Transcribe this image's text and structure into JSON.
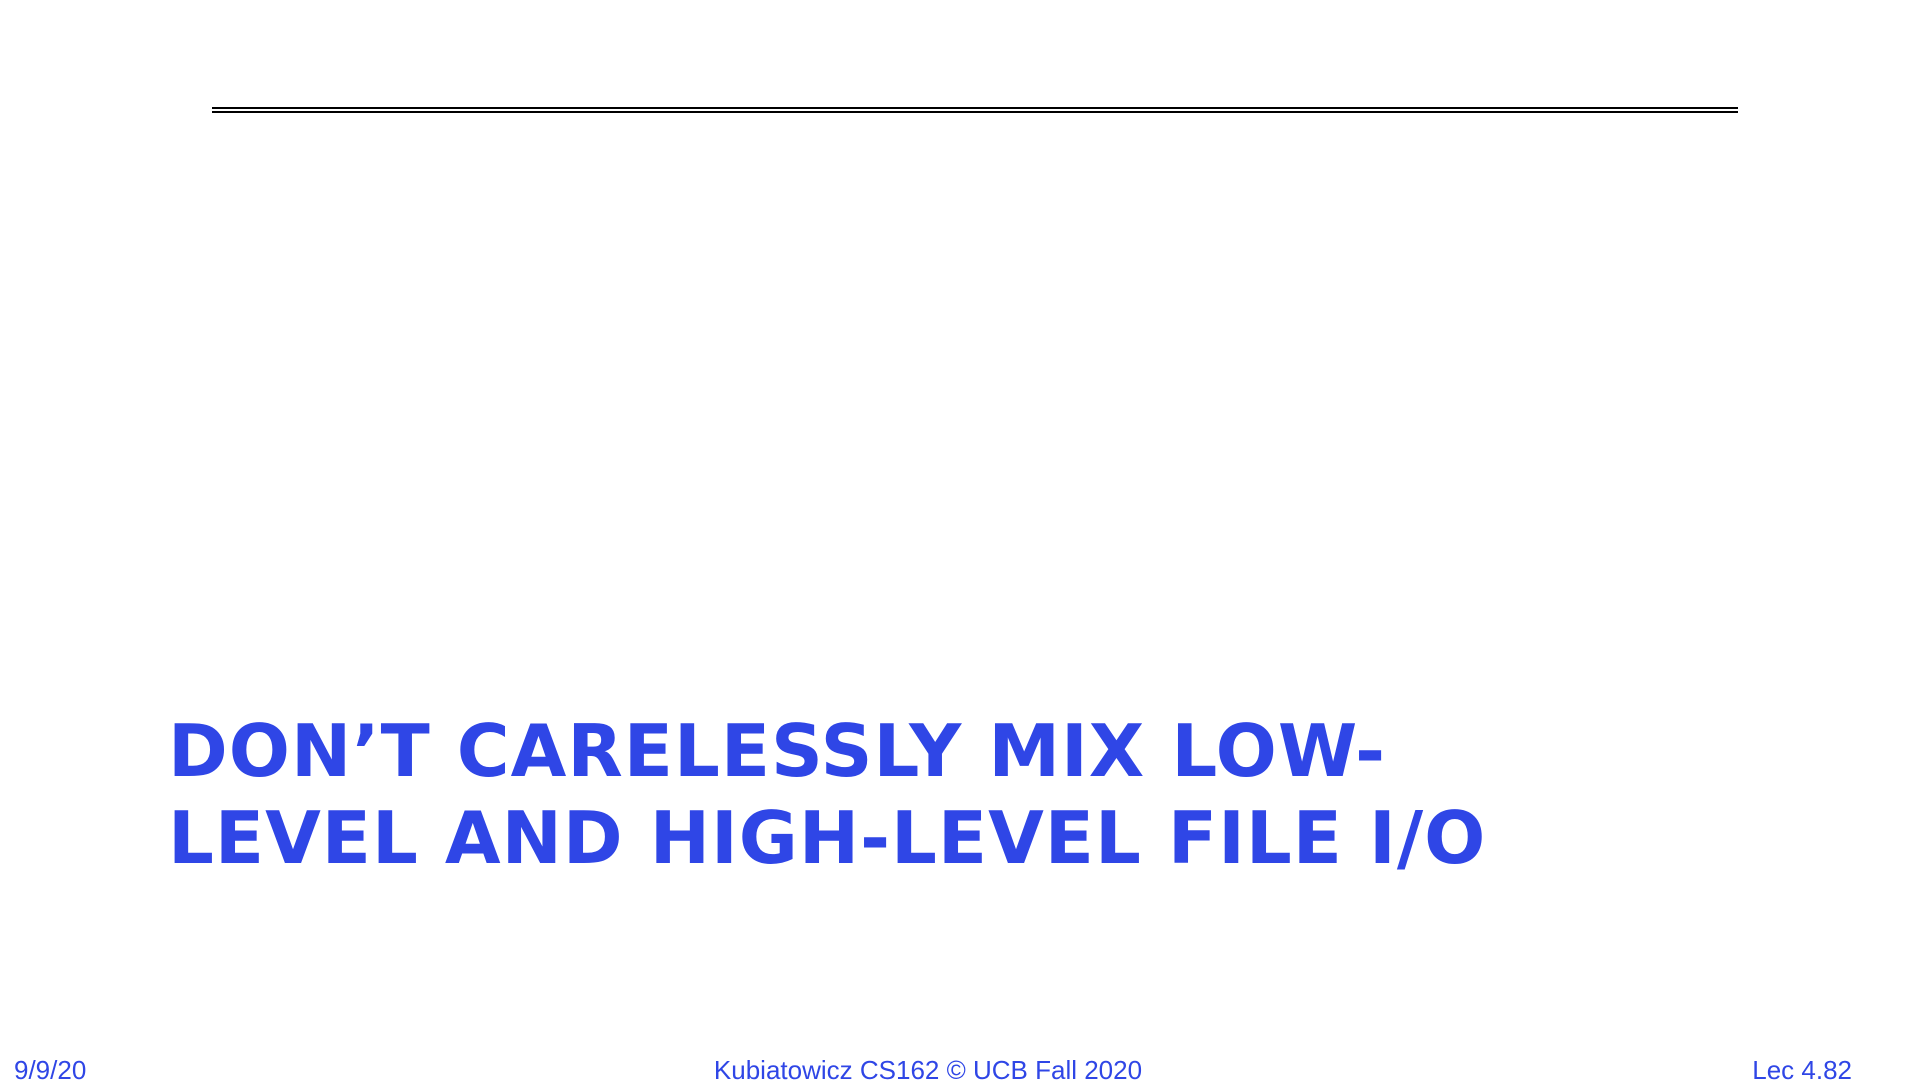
{
  "slide": {
    "title_lines": [
      "DON’T CARELESSLY MIX LOW-",
      "LEVEL AND HIGH-LEVEL FILE I/O"
    ],
    "accent_color": "#2f46e6",
    "rule_color": "#000000"
  },
  "footer": {
    "date": "9/9/20",
    "course": "Kubiatowicz CS162 © UCB Fall 2020",
    "lecture": "Lec 4.82"
  }
}
